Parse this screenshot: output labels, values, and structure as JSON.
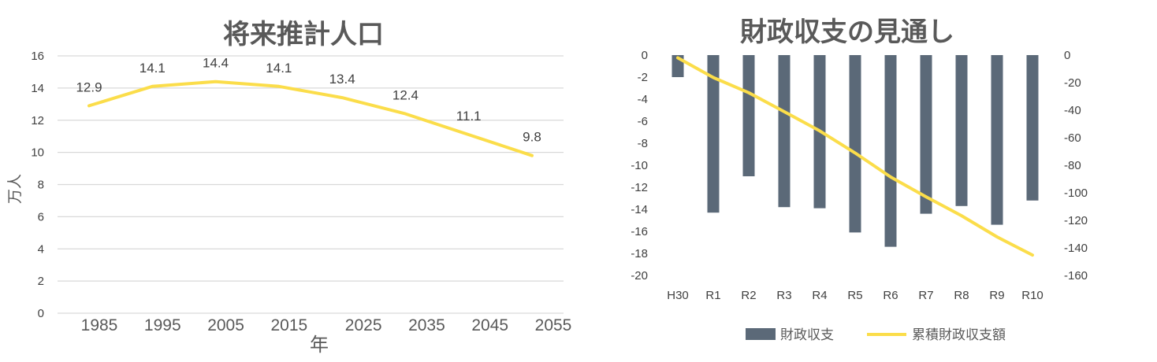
{
  "chart_data": [
    {
      "type": "line",
      "title": "将来推計人口",
      "xlabel": "年",
      "ylabel": "万人",
      "categories": [
        "1985",
        "1995",
        "2005",
        "2015",
        "2025",
        "2035",
        "2045",
        "2055"
      ],
      "values": [
        12.9,
        14.1,
        14.4,
        14.1,
        13.4,
        12.4,
        11.1,
        9.8
      ],
      "ylim": [
        0,
        16
      ],
      "yticks": [
        "0",
        "2",
        "4",
        "6",
        "8",
        "10",
        "12",
        "14",
        "16"
      ],
      "grid": true,
      "colors": {
        "line": "#fbdd4a",
        "grid": "#d9d9d9",
        "text": "#595959"
      }
    },
    {
      "type": "bar+line",
      "title": "財政収支の見通し",
      "categories": [
        "H30",
        "R1",
        "R2",
        "R3",
        "R4",
        "R5",
        "R6",
        "R7",
        "R8",
        "R9",
        "R10"
      ],
      "series": [
        {
          "name": "財政収支",
          "type": "bar",
          "axis": "left",
          "values": [
            -2.0,
            -14.3,
            -11.0,
            -13.8,
            -13.9,
            -16.1,
            -17.4,
            -14.4,
            -13.7,
            -15.4,
            -13.2
          ]
        },
        {
          "name": "累積財政収支額",
          "type": "line",
          "axis": "right",
          "values": [
            -2.0,
            -16.3,
            -27.3,
            -41.1,
            -55.0,
            -71.1,
            -88.5,
            -102.9,
            -116.6,
            -132.0,
            -145.2
          ]
        }
      ],
      "ylim_left": [
        -20,
        0
      ],
      "yticks_left": [
        "0",
        "-2",
        "-4",
        "-6",
        "-8",
        "-10",
        "-12",
        "-14",
        "-16",
        "-18",
        "-20"
      ],
      "ylim_right": [
        -160,
        0
      ],
      "yticks_right": [
        "0",
        "-20",
        "-40",
        "-60",
        "-80",
        "-100",
        "-120",
        "-140",
        "-160"
      ],
      "legend_position": "bottom",
      "grid": false,
      "colors": {
        "bar": "#5b6978",
        "line": "#fbdd4a",
        "text": "#595959"
      }
    }
  ]
}
